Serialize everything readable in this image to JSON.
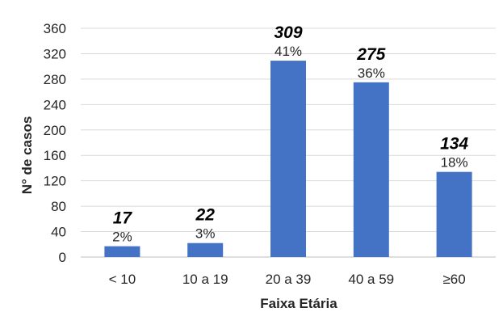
{
  "chart_data": {
    "type": "bar",
    "categories": [
      "< 10",
      "10 a 19",
      "20 a 39",
      "40 a 59",
      "≥60"
    ],
    "values": [
      17,
      22,
      309,
      275,
      134
    ],
    "percent_labels": [
      "2%",
      "3%",
      "41%",
      "36%",
      "18%"
    ],
    "xlabel": "Faixa Etária",
    "ylabel": "N° de casos",
    "ylim": [
      0,
      360
    ],
    "yticks": [
      0,
      40,
      80,
      120,
      160,
      200,
      240,
      280,
      320,
      360
    ],
    "grid": "horizontal",
    "legend": "none"
  },
  "colors": {
    "bar": "#4472C4",
    "grid": "#D9D9D9",
    "axis": "#BFBFBF"
  }
}
